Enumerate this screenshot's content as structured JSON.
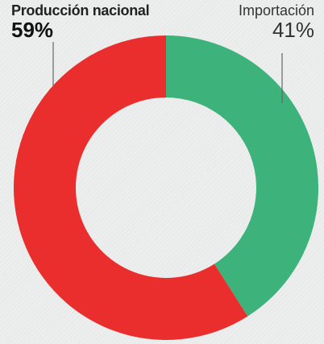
{
  "chart_data": {
    "type": "pie",
    "donut": true,
    "series": [
      {
        "name": "Producción nacional",
        "value": 59,
        "label": "59%",
        "color": "#ea2d2d"
      },
      {
        "name": "Importación",
        "value": 41,
        "label": "41%",
        "color": "#3db27a"
      }
    ]
  }
}
